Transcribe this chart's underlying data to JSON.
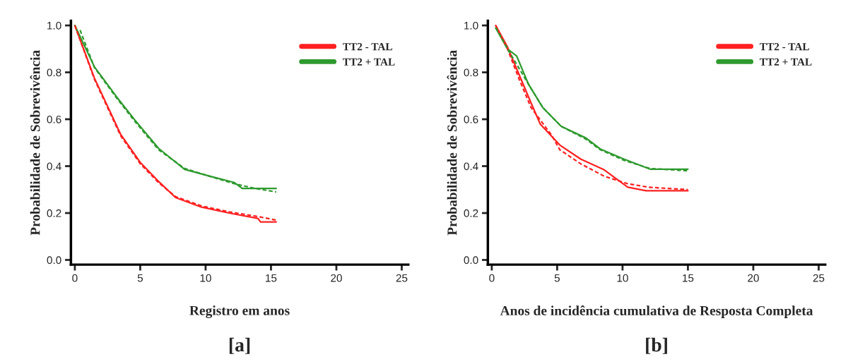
{
  "chart_data": [
    {
      "type": "line",
      "xlabel": "Registro em anos",
      "ylabel": "Probabilidade de Sobrevivência",
      "annotations": [
        "[a]"
      ],
      "xlim": [
        -0.3,
        25.5
      ],
      "ylim": [
        -0.02,
        1.02
      ],
      "xticks": [
        0,
        5,
        10,
        15,
        20,
        25
      ],
      "yticks": [
        {
          "value": 0,
          "label": "0.0"
        },
        {
          "value": 0.2,
          "label": "0.2"
        },
        {
          "value": 0.4,
          "label": "0.4"
        },
        {
          "value": 0.6,
          "label": "0.6"
        },
        {
          "value": 0.8,
          "label": "0.8"
        },
        {
          "value": 1,
          "label": "1.0"
        }
      ],
      "legend": "top right",
      "grid": false,
      "series": [
        {
          "name": "TT2 - TAL",
          "color": "#ff2020",
          "line_style": "solid",
          "x": [
            0,
            1.5,
            3.5,
            5.0,
            6.4,
            7.7,
            9.7,
            11.8,
            14.0,
            14.2,
            15.4
          ],
          "values": [
            1.0,
            0.775,
            0.536,
            0.416,
            0.335,
            0.266,
            0.225,
            0.2,
            0.177,
            0.162,
            0.162
          ]
        },
        {
          "name": "TT2 + TAL",
          "color": "#2e9a2e",
          "line_style": "solid",
          "x": [
            0,
            1.5,
            3.2,
            4.6,
            6.4,
            8.4,
            10.4,
            12.2,
            12.8,
            15.4
          ],
          "values": [
            1.0,
            0.823,
            0.695,
            0.596,
            0.476,
            0.386,
            0.356,
            0.33,
            0.305,
            0.305
          ]
        },
        {
          "type": "line",
          "color": "#ff2020",
          "line_style": "dashed",
          "x": [
            0,
            1.5,
            3.5,
            5.0,
            6.4,
            7.7,
            9.7,
            11.8,
            14.0,
            15.4
          ],
          "values": [
            1.0,
            0.77,
            0.53,
            0.41,
            0.33,
            0.27,
            0.23,
            0.205,
            0.185,
            0.17
          ]
        },
        {
          "type": "line",
          "color": "#2e9a2e",
          "line_style": "dashed",
          "x": [
            0.4,
            1.5,
            3.2,
            4.6,
            6.4,
            8.4,
            10.4,
            12.2,
            13.8,
            15.4
          ],
          "values": [
            0.98,
            0.82,
            0.69,
            0.59,
            0.47,
            0.39,
            0.355,
            0.325,
            0.305,
            0.29
          ]
        }
      ]
    },
    {
      "type": "line",
      "xlabel": "Anos de incidência cumulativa de Resposta Completa",
      "ylabel": "Probabilidade de Sobrevivência",
      "annotations": [
        "[b]"
      ],
      "xlim": [
        -0.3,
        25.5
      ],
      "ylim": [
        -0.02,
        1.02
      ],
      "xticks": [
        0,
        5,
        10,
        15,
        20,
        25
      ],
      "yticks": [
        {
          "value": 0,
          "label": "0.0"
        },
        {
          "value": 0.2,
          "label": "0.2"
        },
        {
          "value": 0.4,
          "label": "0.4"
        },
        {
          "value": 0.6,
          "label": "0.6"
        },
        {
          "value": 0.8,
          "label": "0.8"
        },
        {
          "value": 1,
          "label": "1.0"
        }
      ],
      "legend": "top right",
      "grid": false,
      "series": [
        {
          "name": "TT2 - TAL",
          "color": "#ff2020",
          "line_style": "solid",
          "x": [
            0.3,
            1.2,
            2.1,
            3.0,
            3.7,
            5.2,
            6.8,
            8.6,
            10.4,
            11.8,
            15.0
          ],
          "values": [
            1.0,
            0.908,
            0.789,
            0.67,
            0.58,
            0.49,
            0.43,
            0.384,
            0.31,
            0.295,
            0.295
          ]
        },
        {
          "name": "TT2 + TAL",
          "color": "#2e9a2e",
          "line_style": "solid",
          "x": [
            0.3,
            1.2,
            1.9,
            2.8,
            3.9,
            5.3,
            7.2,
            8.3,
            10.1,
            12.1,
            15.0
          ],
          "values": [
            0.99,
            0.9,
            0.87,
            0.75,
            0.65,
            0.57,
            0.52,
            0.473,
            0.43,
            0.387,
            0.387
          ]
        },
        {
          "type": "line",
          "color": "#ff2020",
          "line_style": "dashed",
          "x": [
            0.3,
            1.2,
            2.1,
            3.0,
            4.6,
            5.2,
            6.8,
            8.6,
            10.4,
            12.0,
            15.0
          ],
          "values": [
            1.0,
            0.9,
            0.77,
            0.65,
            0.53,
            0.47,
            0.41,
            0.357,
            0.325,
            0.31,
            0.3
          ]
        },
        {
          "type": "line",
          "color": "#2e9a2e",
          "line_style": "dashed",
          "x": [
            0.3,
            1.2,
            2.8,
            3.9,
            5.3,
            7.2,
            8.3,
            10.1,
            12.1,
            15.0
          ],
          "values": [
            0.99,
            0.9,
            0.75,
            0.65,
            0.57,
            0.515,
            0.47,
            0.425,
            0.39,
            0.38
          ]
        }
      ]
    }
  ]
}
